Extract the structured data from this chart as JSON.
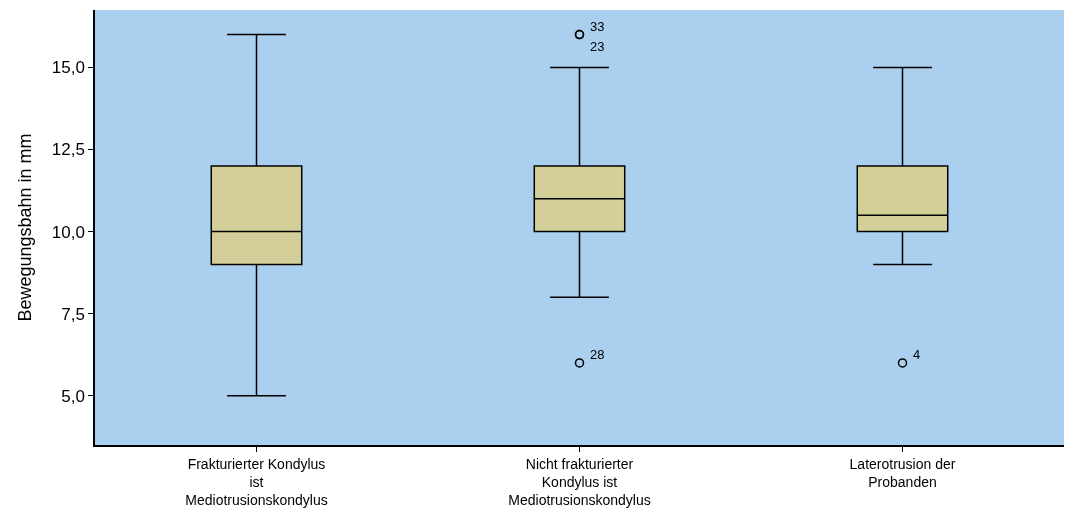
{
  "chart_data": {
    "type": "box",
    "ylabel": "Bewegungsbahn in mm",
    "categories": [
      "Frakturierter Kondylus ist Mediotrusionskondylus",
      "Nicht frakturierter Kondylus ist Mediotrusionskondylus",
      "Laterotrusion der Probanden"
    ],
    "series": [
      {
        "color": "#d4cf98",
        "boxes": [
          {
            "low": 5,
            "q1": 9,
            "median": 10,
            "q3": 12,
            "high": 16
          },
          {
            "low": 8,
            "q1": 10,
            "median": 11,
            "q3": 12,
            "high": 15,
            "outliers": [
              16,
              16,
              6
            ]
          },
          {
            "low": 9,
            "q1": 10,
            "median": 10.5,
            "q3": 12,
            "high": 15,
            "outliers": [
              6
            ]
          }
        ]
      }
    ],
    "ylim": [
      3.5,
      16.75
    ],
    "yticks": [
      {
        "value": 5,
        "label": "5,0"
      },
      {
        "value": 7.5,
        "label": "7,5"
      },
      {
        "value": 10,
        "label": "10,0"
      },
      {
        "value": 12.5,
        "label": "12,5"
      },
      {
        "value": 15,
        "label": "15,0"
      }
    ],
    "annotations": [
      "33",
      "23",
      "28",
      "4"
    ]
  }
}
